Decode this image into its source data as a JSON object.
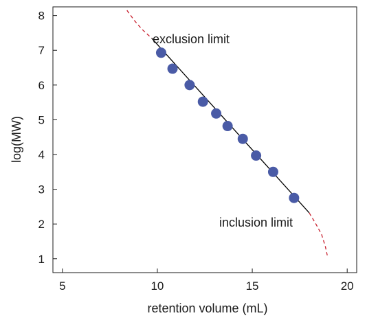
{
  "chart_data": {
    "type": "scatter",
    "title": "",
    "xlabel": "retention volume (mL)",
    "ylabel": "log(MW)",
    "xlim": [
      4.5,
      20.5
    ],
    "ylim": [
      0.6,
      8.25
    ],
    "x_ticks": [
      5,
      10,
      15,
      20
    ],
    "y_ticks": [
      1,
      2,
      3,
      4,
      5,
      6,
      7,
      8
    ],
    "grid": false,
    "legend": "none",
    "series": [
      {
        "type": "scatter",
        "x": [
          10.2,
          10.8,
          11.7,
          12.4,
          13.1,
          13.7,
          14.5,
          15.2,
          16.1,
          17.2
        ],
        "y": [
          6.93,
          6.47,
          6.0,
          5.52,
          5.18,
          4.82,
          4.45,
          3.97,
          3.5,
          2.75
        ]
      },
      {
        "type": "line",
        "x": [
          9.7,
          18.0
        ],
        "y": [
          7.35,
          2.32
        ]
      },
      {
        "type": "line",
        "style": "dashed",
        "x": [
          8.4,
          8.8,
          9.2,
          9.5,
          9.7
        ],
        "y": [
          8.15,
          7.85,
          7.6,
          7.45,
          7.35
        ]
      },
      {
        "type": "line",
        "style": "dashed",
        "x": [
          18.0,
          18.35,
          18.65,
          18.85,
          18.95
        ],
        "y": [
          2.32,
          2.0,
          1.7,
          1.35,
          1.1
        ]
      }
    ],
    "annotations": [
      {
        "text": "exclusion limit",
        "x": 9.7,
        "y": 7.35
      },
      {
        "text": "inclusion limit",
        "x": 18.0,
        "y": 2.32
      }
    ],
    "colors": {
      "points": "#4a5ba6",
      "fit_line": "#000000",
      "dashed_extension": "#c8202e",
      "axis": "#1a1a1a"
    }
  }
}
